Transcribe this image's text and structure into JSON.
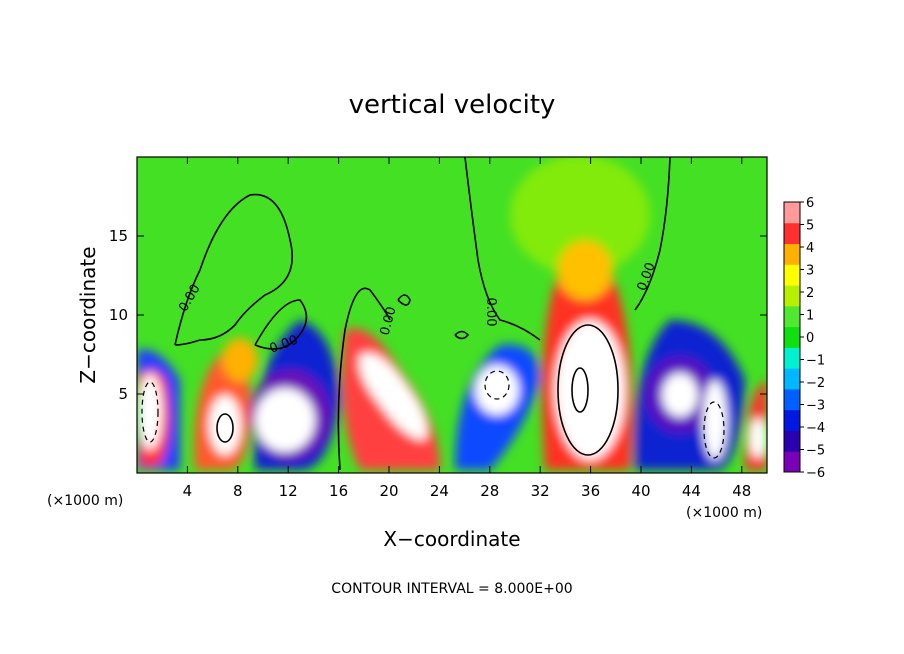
{
  "chart_data": {
    "type": "heatmap",
    "title": "vertical velocity",
    "xlabel": "X−coordinate",
    "ylabel": "Z−coordinate",
    "x_unit_left": "(×1000 m)",
    "x_unit_right": "(×1000 m)",
    "x_ticks": [
      "4",
      "8",
      "12",
      "16",
      "20",
      "24",
      "28",
      "32",
      "36",
      "40",
      "44",
      "48"
    ],
    "x_tick_values": [
      4,
      8,
      12,
      16,
      20,
      24,
      28,
      32,
      36,
      40,
      44,
      48
    ],
    "y_ticks": [
      "5",
      "10",
      "15"
    ],
    "y_tick_values": [
      5,
      10,
      15
    ],
    "xlim": [
      0,
      50
    ],
    "ylim": [
      0,
      20
    ],
    "colorbar": {
      "ticks": [
        "6",
        "5",
        "4",
        "3",
        "2",
        "1",
        "0",
        "−1",
        "−2",
        "−3",
        "−4",
        "−5",
        "−6"
      ],
      "range": [
        -6,
        6
      ],
      "colors": [
        "#7a00b8",
        "#2a00b0",
        "#0018e0",
        "#0060ff",
        "#00b8ff",
        "#00f0d0",
        "#10e010",
        "#50e830",
        "#b8f000",
        "#ffff00",
        "#ffb000",
        "#ff3030",
        "#ff9a9a"
      ]
    },
    "contour_labels": [
      "0.00",
      "0.00",
      "0.00",
      "0.00",
      "0.00"
    ],
    "footnote": "CONTOUR INTERVAL = 8.000E+00",
    "features": [
      {
        "x": 1.5,
        "z": 3.5,
        "w": 9,
        "kind": "updraft-core"
      },
      {
        "x": 7,
        "z": 3,
        "w": 8,
        "kind": "updraft-core"
      },
      {
        "x": 12,
        "z": 3.5,
        "w": -8,
        "kind": "downdraft-core"
      },
      {
        "x": 20,
        "z": 5.5,
        "w": 9,
        "kind": "updraft-core"
      },
      {
        "x": 29,
        "z": 5,
        "w": -7,
        "kind": "downdraft-core"
      },
      {
        "x": 35.5,
        "z": 6,
        "w": 10,
        "kind": "updraft-core"
      },
      {
        "x": 43,
        "z": 5,
        "w": -7,
        "kind": "downdraft-core"
      },
      {
        "x": 45.5,
        "z": 3,
        "w": 8,
        "kind": "updraft-core"
      },
      {
        "x": 49,
        "z": 2.5,
        "w": 7,
        "kind": "updraft-core"
      }
    ]
  }
}
